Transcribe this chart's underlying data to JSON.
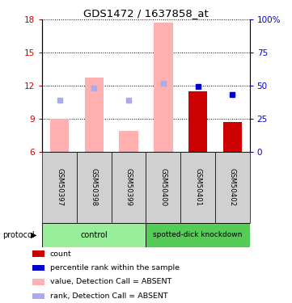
{
  "title": "GDS1472 / 1637858_at",
  "samples": [
    "GSM50397",
    "GSM50398",
    "GSM50399",
    "GSM50400",
    "GSM50401",
    "GSM50402"
  ],
  "ylim_left": [
    6,
    18
  ],
  "ylim_right": [
    0,
    100
  ],
  "yticks_left": [
    6,
    9,
    12,
    15,
    18
  ],
  "yticks_right": [
    0,
    25,
    50,
    75,
    100
  ],
  "yticklabels_right": [
    "0",
    "25",
    "50",
    "75",
    "100%"
  ],
  "bar_bottom": 6,
  "absent_bar_tops": [
    9.0,
    12.7,
    7.9,
    17.7,
    null,
    null
  ],
  "absent_bar_color": "#ffb0b0",
  "present_bar_tops": [
    null,
    null,
    null,
    null,
    11.5,
    8.7
  ],
  "present_bar_color": "#cc0000",
  "rank_absent_y": [
    10.7,
    11.8,
    10.7,
    12.2,
    null,
    null
  ],
  "rank_present_y": [
    null,
    null,
    null,
    null,
    11.9,
    11.2
  ],
  "rank_absent_color": "#aaaaee",
  "rank_present_color": "#0000cc",
  "rank_marker_size": 4,
  "control_label": "control",
  "knockdown_label": "spotted-dick knockdown",
  "group_box_color_control": "#99ee99",
  "group_box_color_knockdown": "#55cc55",
  "protocol_label": "protocol",
  "legend_items": [
    {
      "color": "#cc0000",
      "label": "count"
    },
    {
      "color": "#0000cc",
      "label": "percentile rank within the sample"
    },
    {
      "color": "#ffb0b0",
      "label": "value, Detection Call = ABSENT"
    },
    {
      "color": "#aaaaee",
      "label": "rank, Detection Call = ABSENT"
    }
  ],
  "bar_width": 0.55,
  "left_tick_color": "#cc0000",
  "right_tick_color": "#0000cc"
}
